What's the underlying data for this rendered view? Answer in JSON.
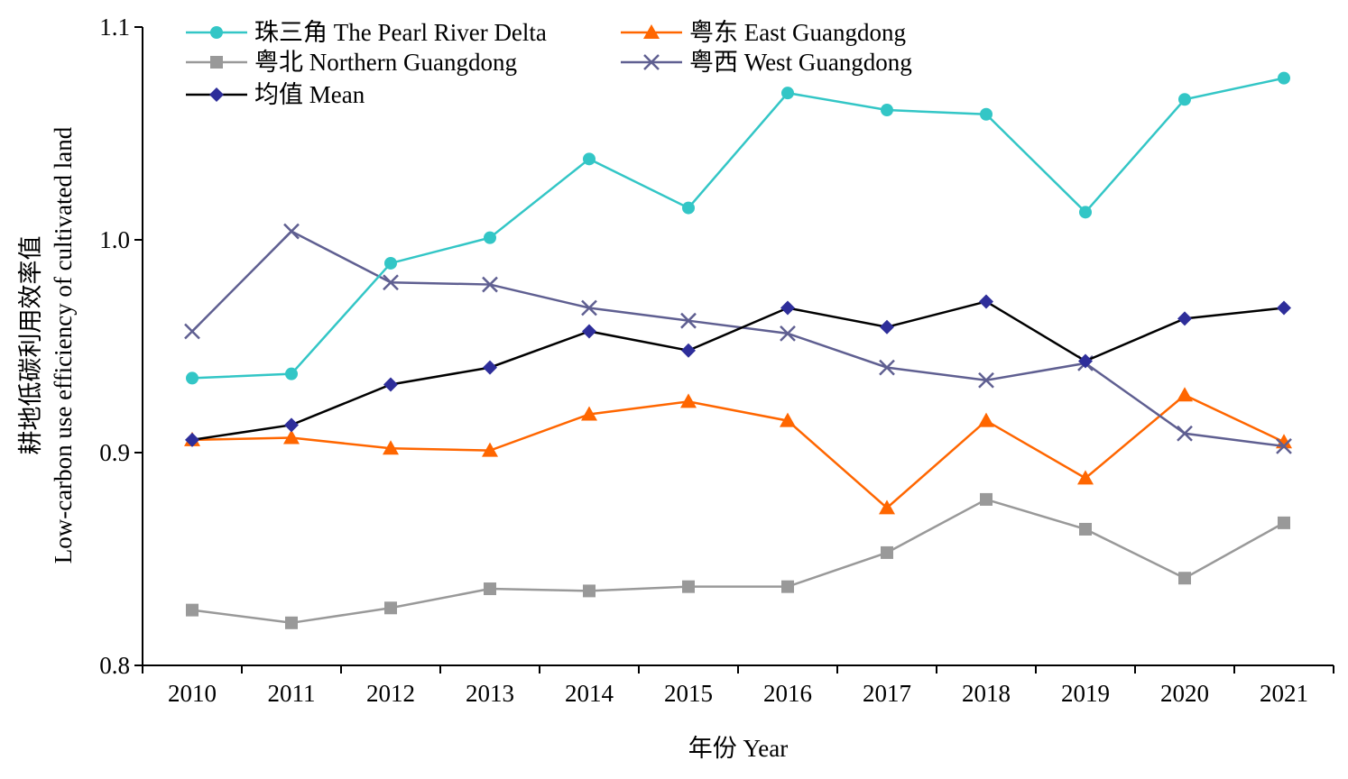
{
  "chart_data": {
    "type": "line",
    "categories": [
      "2010",
      "2011",
      "2012",
      "2013",
      "2014",
      "2015",
      "2016",
      "2017",
      "2018",
      "2019",
      "2020",
      "2021"
    ],
    "series": [
      {
        "name": "珠三角 The Pearl River Delta",
        "color": "#33C6C6",
        "marker": "circle",
        "values": [
          0.935,
          0.937,
          0.989,
          1.001,
          1.038,
          1.015,
          1.069,
          1.061,
          1.059,
          1.013,
          1.066,
          1.076
        ]
      },
      {
        "name": "粤东 East Guangdong",
        "color": "#FF6600",
        "marker": "triangle",
        "values": [
          0.906,
          0.907,
          0.902,
          0.901,
          0.918,
          0.924,
          0.915,
          0.874,
          0.915,
          0.888,
          0.927,
          0.905
        ]
      },
      {
        "name": "粤北 Northern Guangdong",
        "color": "#999999",
        "marker": "square",
        "values": [
          0.826,
          0.82,
          0.827,
          0.836,
          0.835,
          0.837,
          0.837,
          0.853,
          0.878,
          0.864,
          0.841,
          0.867
        ]
      },
      {
        "name": "粤西 West Guangdong",
        "color": "#5F5F91",
        "marker": "x",
        "values": [
          0.957,
          1.004,
          0.98,
          0.979,
          0.968,
          0.962,
          0.956,
          0.94,
          0.934,
          0.942,
          0.909,
          0.903
        ]
      },
      {
        "name": "均值 Mean",
        "color": "#000000",
        "markerColor": "#2E2E9A",
        "marker": "diamond",
        "values": [
          0.906,
          0.913,
          0.932,
          0.94,
          0.957,
          0.948,
          0.968,
          0.959,
          0.971,
          0.943,
          0.963,
          0.968
        ]
      }
    ],
    "ylim": [
      0.8,
      1.1
    ],
    "yticks": [
      "0.8",
      "0.9",
      "1.0",
      "1.1"
    ],
    "ytick_values": [
      0.8,
      0.9,
      1.0,
      1.1
    ],
    "xlabel": "年份 Year",
    "ylabel_line1": "耕地低碳利用效率值",
    "ylabel_line2": "Low-carbon use efficiency of cultivated land",
    "grid": false,
    "legend_position": "top-left"
  }
}
